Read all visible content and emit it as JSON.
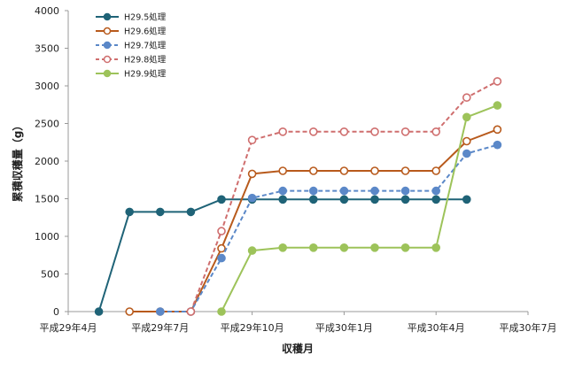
{
  "chart_data": {
    "type": "line",
    "title": "",
    "xlabel": "収穫月",
    "ylabel": "累積収穫量（g）",
    "ylim": [
      0,
      4000
    ],
    "yticks": [
      0,
      500,
      1000,
      1500,
      2000,
      2500,
      3000,
      3500,
      4000
    ],
    "xticks": [
      {
        "label": "平成29年4月",
        "x": "2017-04"
      },
      {
        "label": "平成29年7月",
        "x": "2017-07"
      },
      {
        "label": "平成29年10月",
        "x": "2017-10"
      },
      {
        "label": "平成30年1月",
        "x": "2018-01"
      },
      {
        "label": "平成30年4月",
        "x": "2018-04"
      },
      {
        "label": "平成30年7月",
        "x": "2018-07"
      }
    ],
    "grid": false,
    "legend_position": "top-left",
    "x": [
      "2017-05",
      "2017-06",
      "2017-07",
      "2017-08",
      "2017-09",
      "2017-10",
      "2017-11",
      "2017-12",
      "2018-01",
      "2018-02",
      "2018-03",
      "2018-04",
      "2018-05",
      "2018-06"
    ],
    "series": [
      {
        "name": "H29.5処理",
        "color": "#1f6377",
        "dash": false,
        "marker": "filled",
        "values": [
          0,
          1325,
          1325,
          1325,
          1490,
          1490,
          1490,
          1490,
          1490,
          1490,
          1490,
          1490,
          1490,
          null
        ]
      },
      {
        "name": "H29.6処理",
        "color": "#b85a1c",
        "dash": false,
        "marker": "open",
        "values": [
          null,
          0,
          0,
          0,
          840,
          1830,
          1870,
          1870,
          1870,
          1870,
          1870,
          1870,
          2265,
          2420
        ]
      },
      {
        "name": "H29.7処理",
        "color": "#5b88c8",
        "dash": true,
        "marker": "filled",
        "values": [
          null,
          null,
          0,
          0,
          710,
          1510,
          1605,
          1605,
          1605,
          1605,
          1605,
          1605,
          2100,
          2215
        ]
      },
      {
        "name": "H29.8処理",
        "color": "#cf6e6e",
        "dash": true,
        "marker": "open",
        "values": [
          null,
          null,
          null,
          0,
          1070,
          2280,
          2390,
          2390,
          2390,
          2390,
          2390,
          2390,
          2845,
          3060
        ]
      },
      {
        "name": "H29.9処理",
        "color": "#9dc35a",
        "dash": false,
        "marker": "filled",
        "values": [
          null,
          null,
          null,
          null,
          0,
          810,
          850,
          850,
          850,
          850,
          850,
          850,
          2585,
          2740
        ]
      }
    ]
  }
}
